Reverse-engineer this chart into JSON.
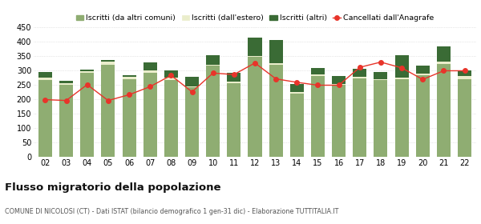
{
  "years": [
    "02",
    "03",
    "04",
    "05",
    "06",
    "07",
    "08",
    "09",
    "10",
    "11",
    "12",
    "13",
    "14",
    "15",
    "16",
    "17",
    "18",
    "19",
    "20",
    "21",
    "22"
  ],
  "iscritti_altri_comuni": [
    265,
    248,
    292,
    320,
    270,
    292,
    265,
    240,
    315,
    255,
    345,
    318,
    220,
    280,
    248,
    272,
    265,
    270,
    282,
    322,
    270
  ],
  "iscritti_estero": [
    8,
    8,
    5,
    10,
    8,
    8,
    8,
    5,
    5,
    5,
    5,
    5,
    5,
    5,
    5,
    5,
    5,
    5,
    5,
    8,
    10
  ],
  "iscritti_altri": [
    22,
    8,
    5,
    5,
    5,
    28,
    25,
    33,
    32,
    32,
    62,
    82,
    28,
    22,
    28,
    28,
    25,
    78,
    28,
    52,
    18
  ],
  "cancellati": [
    198,
    195,
    250,
    195,
    215,
    243,
    282,
    225,
    290,
    285,
    325,
    270,
    258,
    248,
    248,
    310,
    328,
    308,
    268,
    298,
    298
  ],
  "color_altri_comuni": "#8fad72",
  "color_estero": "#eaedcb",
  "color_altri": "#3a6b35",
  "color_cancellati": "#e8342a",
  "ylim": [
    0,
    450
  ],
  "yticks": [
    0,
    50,
    100,
    150,
    200,
    250,
    300,
    350,
    400,
    450
  ],
  "title": "Flusso migratorio della popolazione",
  "subtitle": "COMUNE DI NICOLOSI (CT) - Dati ISTAT (bilancio demografico 1 gen-31 dic) - Elaborazione TUTTITALIA.IT",
  "legend_labels": [
    "Iscritti (da altri comuni)",
    "Iscritti (dall'estero)",
    "Iscritti (altri)",
    "Cancellati dall'Anagrafe"
  ],
  "bg_color": "#ffffff",
  "grid_color": "#d0d0d0"
}
